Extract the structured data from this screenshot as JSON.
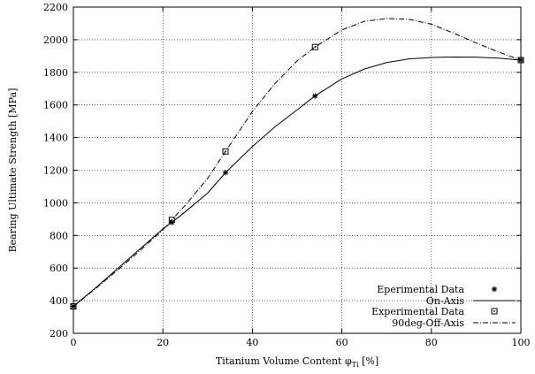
{
  "chart_data": {
    "type": "line",
    "title": "",
    "xlabel": "Titanium Volume Content φ",
    "xlabel_sub": "Ti",
    "xlabel_unit": " [%]",
    "ylabel": "Bearing Ultimate Strength [MPa]",
    "xlim": [
      0,
      100
    ],
    "ylim": [
      200,
      2200
    ],
    "xticks": [
      0,
      20,
      40,
      60,
      80,
      100
    ],
    "yticks": [
      200,
      400,
      600,
      800,
      1000,
      1200,
      1400,
      1600,
      1800,
      2000,
      2200
    ],
    "grid": true,
    "legend_position": "bottom-right",
    "series": [
      {
        "name": "Eperimental Data",
        "kind": "scatter",
        "marker": "asterisk",
        "x": [
          0,
          22,
          34,
          54,
          100
        ],
        "y": [
          365,
          880,
          1185,
          1655,
          1875
        ]
      },
      {
        "name": "On-Axis",
        "kind": "line",
        "dash": "solid",
        "x": [
          0,
          5,
          10,
          15,
          20,
          22,
          25,
          30,
          34,
          40,
          45,
          50,
          54,
          60,
          65,
          70,
          75,
          80,
          85,
          90,
          95,
          100
        ],
        "y": [
          365,
          480,
          600,
          720,
          840,
          880,
          945,
          1060,
          1185,
          1345,
          1465,
          1570,
          1655,
          1760,
          1820,
          1860,
          1882,
          1891,
          1894,
          1893,
          1887,
          1875
        ]
      },
      {
        "name": "Experimental Data",
        "kind": "scatter",
        "marker": "square",
        "x": [
          0,
          22,
          34,
          54,
          100
        ],
        "y": [
          365,
          895,
          1315,
          1955,
          1875
        ]
      },
      {
        "name": "90deg-Off-Axis",
        "kind": "line",
        "dash": "dashdot",
        "x": [
          0,
          5,
          10,
          15,
          20,
          22,
          25,
          30,
          34,
          40,
          45,
          50,
          54,
          60,
          65,
          70,
          75,
          80,
          85,
          90,
          95,
          100
        ],
        "y": [
          365,
          475,
          590,
          710,
          835,
          895,
          985,
          1150,
          1315,
          1560,
          1730,
          1870,
          1955,
          2060,
          2112,
          2130,
          2125,
          2095,
          2040,
          1980,
          1925,
          1875
        ]
      }
    ]
  }
}
